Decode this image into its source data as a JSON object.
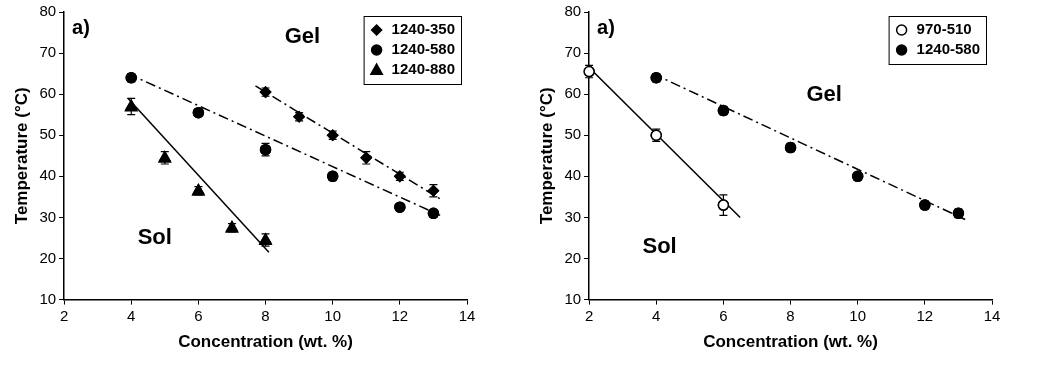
{
  "chart_data": [
    {
      "type": "scatter",
      "title": "a)",
      "x_label": "Concentration (wt. %)",
      "y_label": "Temperature (°C)",
      "xlim": [
        2,
        14
      ],
      "xticks": [
        2,
        4,
        6,
        8,
        10,
        12,
        14
      ],
      "ylim": [
        10,
        80
      ],
      "yticks": [
        10,
        20,
        30,
        40,
        50,
        60,
        70,
        80
      ],
      "grid": false,
      "legend": "upper right",
      "annotations": [
        {
          "text": "Gel",
          "x": 9.1,
          "y": 74
        },
        {
          "text": "Sol",
          "x": 4.7,
          "y": 25
        }
      ],
      "series": [
        {
          "name": "1240-350",
          "color": "#000000",
          "marker": "diamond",
          "line_style": "dashdot",
          "x": [
            8,
            9,
            10,
            11,
            12,
            13
          ],
          "values": [
            60.5,
            54.5,
            50,
            44.5,
            40,
            36.5
          ],
          "errors": [
            1,
            1,
            1,
            1.5,
            1,
            1.5
          ],
          "fit_x": [
            7.7,
            13.2
          ],
          "fit_values": [
            62,
            34.5
          ]
        },
        {
          "name": "1240-580",
          "color": "#000000",
          "marker": "circle",
          "line_style": "dashdot",
          "x": [
            4,
            6,
            8,
            10,
            12,
            13
          ],
          "values": [
            64,
            55.5,
            46.5,
            40,
            32.5,
            31
          ],
          "errors": [
            1,
            0.8,
            1.5,
            1,
            0.8,
            0.8
          ],
          "fit_x": [
            3.9,
            13.2
          ],
          "fit_values": [
            65,
            30.5
          ]
        },
        {
          "name": "1240-880",
          "color": "#000000",
          "marker": "triangle",
          "line_style": "solid",
          "x": [
            4,
            5,
            6,
            7,
            8
          ],
          "values": [
            57,
            44.5,
            36.5,
            27.5,
            24.5
          ],
          "errors": [
            2,
            1.5,
            1,
            1,
            1.5
          ],
          "fit_x": [
            3.9,
            8.1
          ],
          "fit_values": [
            59,
            21.5
          ]
        }
      ]
    },
    {
      "type": "scatter",
      "title": "a)",
      "x_label": "Concentration (wt. %)",
      "y_label": "Temperature (°C)",
      "xlim": [
        2,
        14
      ],
      "xticks": [
        2,
        4,
        6,
        8,
        10,
        12,
        14
      ],
      "ylim": [
        10,
        80
      ],
      "yticks": [
        10,
        20,
        30,
        40,
        50,
        60,
        70,
        80
      ],
      "grid": false,
      "legend": "upper right",
      "annotations": [
        {
          "text": "Gel",
          "x": 9,
          "y": 59.7
        },
        {
          "text": "Sol",
          "x": 4.1,
          "y": 22.9
        }
      ],
      "series": [
        {
          "name": "970-510",
          "color": "#000000",
          "marker": "open_circle",
          "line_style": "solid",
          "x": [
            2,
            4,
            6
          ],
          "values": [
            65.5,
            50,
            33
          ],
          "errors": [
            1.5,
            1.5,
            2.5
          ],
          "fit_x": [
            2,
            6.5
          ],
          "fit_values": [
            66.5,
            30
          ]
        },
        {
          "name": "1240-580",
          "color": "#000000",
          "marker": "circle",
          "line_style": "dashdot",
          "x": [
            4,
            6,
            8,
            10,
            12,
            13
          ],
          "values": [
            64,
            56,
            47,
            40,
            33,
            31
          ],
          "errors": [
            1,
            1,
            1,
            1,
            1,
            1
          ],
          "fit_x": [
            3.9,
            13.2
          ],
          "fit_values": [
            65,
            29.5
          ]
        }
      ]
    }
  ]
}
